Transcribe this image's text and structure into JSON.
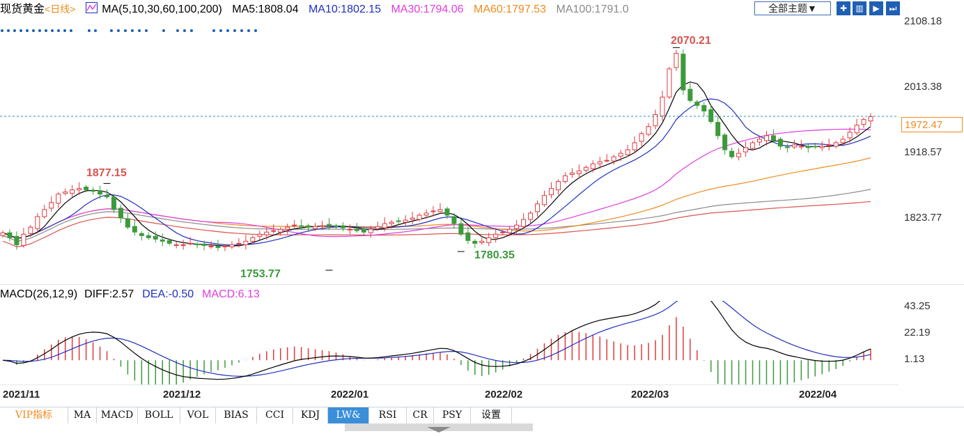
{
  "header": {
    "instrument": "现货黄金",
    "period": "<日线>",
    "ma_label": "MA(5,10,30,60,100,200)",
    "ma5": "MA5:1808.04",
    "ma10": "MA10:1802.15",
    "ma30": "MA30:1794.06",
    "ma60": "MA60:1797.53",
    "ma100": "MA100:1791.0",
    "topic_select": "全部主题▼"
  },
  "colors": {
    "up": "#e0393e",
    "down": "#3c9a3c",
    "ma5": "#000000",
    "ma10": "#1f2fbf",
    "ma30": "#e03ce0",
    "ma60": "#f08a1c",
    "ma100": "#8a8a8a",
    "ma200": "#d9534f",
    "current_line": "#1f8fbf"
  },
  "price_axis": {
    "ticks": [
      "2108.18",
      "2013.38",
      "1918.57",
      "1823.77"
    ],
    "current_price": "1972.47"
  },
  "annotations": {
    "high_1": "1877.15",
    "low_1": "1753.77",
    "low_2": "1780.35",
    "high_2": "2070.21"
  },
  "macd": {
    "label": "MACD(26,12,9)",
    "diff": "DIFF:2.57",
    "dea": "DEA:-0.50",
    "macd": "MACD:6.13",
    "ticks": [
      "43.25",
      "22.19",
      "1.13"
    ]
  },
  "x_axis": [
    "2021/11",
    "2021/12",
    "2022/01",
    "2022/02",
    "2022/03",
    "2022/04"
  ],
  "tabs": [
    "VIP指标",
    "MA",
    "MACD",
    "BOLL",
    "VOL",
    "BIAS",
    "CCI",
    "KDJ",
    "LW&",
    "RSI",
    "CR",
    "PSY",
    "设置"
  ],
  "active_tab": "LW&",
  "chart_data": {
    "type": "candlestick",
    "title": "现货黄金 日线",
    "ylim": [
      1732,
      2108.18
    ],
    "series": [
      {
        "name": "MA5",
        "values": []
      },
      {
        "name": "MA10",
        "values": []
      },
      {
        "name": "MA30",
        "values": []
      },
      {
        "name": "MA60",
        "values": []
      },
      {
        "name": "MA100",
        "values": []
      },
      {
        "name": "MA200",
        "values": []
      }
    ],
    "close_path": [
      1807,
      1800,
      1790,
      1805,
      1815,
      1830,
      1840,
      1850,
      1862,
      1865,
      1868,
      1870,
      1868,
      1866,
      1862,
      1858,
      1840,
      1828,
      1815,
      1808,
      1803,
      1800,
      1798,
      1795,
      1792,
      1790,
      1790,
      1792,
      1790,
      1789,
      1788,
      1786,
      1788,
      1790,
      1792,
      1795,
      1800,
      1805,
      1808,
      1810,
      1812,
      1815,
      1818,
      1816,
      1815,
      1816,
      1817,
      1818,
      1816,
      1814,
      1812,
      1810,
      1808,
      1812,
      1816,
      1820,
      1822,
      1823,
      1825,
      1828,
      1832,
      1835,
      1838,
      1840,
      1832,
      1820,
      1805,
      1796,
      1792,
      1795,
      1800,
      1805,
      1808,
      1812,
      1818,
      1826,
      1835,
      1848,
      1860,
      1870,
      1880,
      1888,
      1892,
      1895,
      1900,
      1905,
      1908,
      1910,
      1915,
      1920,
      1925,
      1935,
      1948,
      1958,
      1975,
      2000,
      2040,
      2062,
      2010,
      1995,
      1988,
      1980,
      1965,
      1945,
      1925,
      1915,
      1920,
      1928,
      1935,
      1940,
      1945,
      1938,
      1930,
      1928,
      1932,
      1930,
      1928,
      1929,
      1930,
      1932,
      1935,
      1940,
      1950,
      1960,
      1968,
      1972
    ],
    "macd_diff": [
      2.57
    ],
    "macd_dea": [
      -0.5
    ],
    "macd_hist": [
      6.13
    ],
    "macd_ylim": [
      -20,
      43.25
    ]
  }
}
